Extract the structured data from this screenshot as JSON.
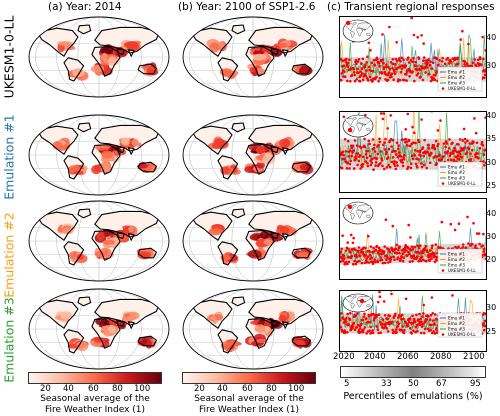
{
  "columns": [
    {
      "label": "(a) Year: 2014"
    },
    {
      "label": "(b) Year: 2100 of SSP1-2.6"
    },
    {
      "label": "(c) Transient regional responses"
    }
  ],
  "rows": [
    {
      "label": "UKESM1-0-LL",
      "color": "#000000"
    },
    {
      "label": "Emulation #1",
      "color": "#1f77b4"
    },
    {
      "label": "Emulation #2",
      "color": "#ff9e18"
    },
    {
      "label": "Emulation #3",
      "color": "#2ca02c"
    }
  ],
  "colorbar": {
    "ticks": [
      "20",
      "40",
      "60",
      "80",
      "100"
    ],
    "label_line1": "Seasonal average of the",
    "label_line2": "Fire Weather Index (1)",
    "colors": [
      "#fff5f0",
      "#fcbba1",
      "#fb6a4a",
      "#cb181d",
      "#67000d"
    ]
  },
  "percentile_bar": {
    "ticks": [
      "5",
      "33",
      "50",
      "67",
      "95"
    ],
    "label": "Percentiles of emulations (%)"
  },
  "legend_entries": [
    "Emu #1",
    "Emu #2",
    "Emu #3",
    "UKESM1-0-LL"
  ],
  "series_colors": {
    "emu1": "#1f77b4",
    "emu2": "#ff9e18",
    "emu3": "#2ca02c",
    "esm": "#ff0000"
  },
  "chart_data": [
    {
      "type": "scatter",
      "title": "",
      "x_ticks": [
        "2020",
        "2040",
        "2060",
        "2080",
        "2100"
      ],
      "y_ticks": [
        "30",
        "40"
      ],
      "ylim": [
        19,
        48
      ],
      "xlim": [
        2015,
        2100
      ],
      "center": 29,
      "spread": 4
    },
    {
      "type": "scatter",
      "title": "",
      "x_ticks": [
        "2020",
        "2040",
        "2060",
        "2080",
        "2100"
      ],
      "y_ticks": [
        "25",
        "30",
        "35",
        "40"
      ],
      "ylim": [
        24,
        41
      ],
      "xlim": [
        2015,
        2100
      ],
      "center": 32,
      "spread": 3
    },
    {
      "type": "scatter",
      "title": "",
      "x_ticks": [
        "2020",
        "2040",
        "2060",
        "2080",
        "2100"
      ],
      "y_ticks": [
        "20",
        "30",
        "40"
      ],
      "ylim": [
        12,
        47
      ],
      "xlim": [
        2015,
        2100
      ],
      "center": 22,
      "spread": 3.5
    },
    {
      "type": "scatter",
      "title": "",
      "x_ticks": [
        "2020",
        "2040",
        "2060",
        "2080",
        "2100"
      ],
      "y_ticks": [
        "25",
        "30"
      ],
      "ylim": [
        21,
        34
      ],
      "xlim": [
        2015,
        2100
      ],
      "center": 27,
      "spread": 2
    }
  ]
}
